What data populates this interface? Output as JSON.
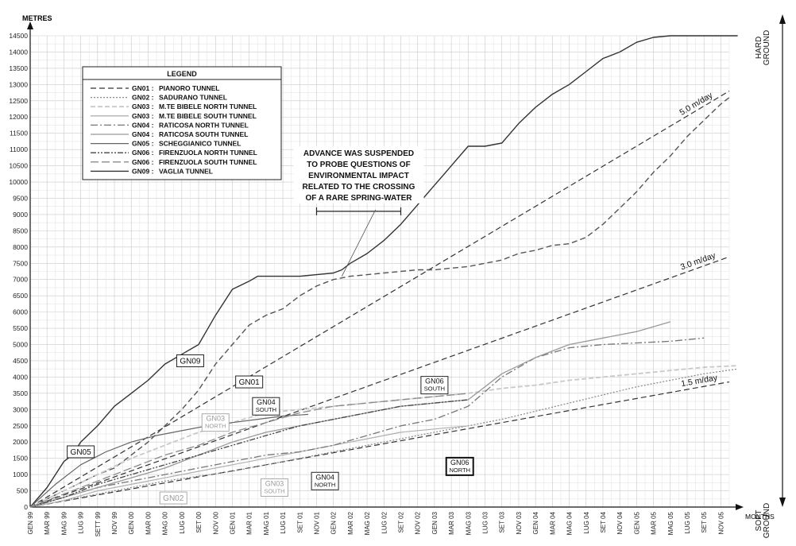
{
  "chart_data": {
    "type": "line",
    "ylabel": "METRES",
    "xlabel": "MONTHS",
    "ylim": [
      0,
      14500
    ],
    "ytick_step": 500,
    "grid": true,
    "x_categories": [
      "GEN 99",
      "MAR 99",
      "MAG 99",
      "LUG 99",
      "SETT 99",
      "NOV 99",
      "GEN 00",
      "MAR 00",
      "MAG 00",
      "LUG 00",
      "SET 00",
      "NOV 00",
      "GEN 01",
      "MAR 01",
      "MAG 01",
      "LUG 01",
      "SET 01",
      "NOV 01",
      "GEN 02",
      "MAR 02",
      "MAG 02",
      "LUG 02",
      "SET 02",
      "NOV 02",
      "GEN 03",
      "MAR 03",
      "MAG 03",
      "LUG 03",
      "SET 03",
      "NOV 03",
      "GEN 04",
      "MAR 04",
      "MAG 04",
      "LUG 04",
      "SET 04",
      "NOV 04",
      "GEN 05",
      "MAR 05",
      "MAG 05",
      "LUG 05",
      "SET 05",
      "NOV 05"
    ],
    "legend": {
      "title": "LEGEND",
      "placement": "top-left",
      "items": [
        {
          "code": "GN01 :",
          "name": "PIANORO TUNNEL"
        },
        {
          "code": "GN02 :",
          "name": "SADURANO TUNNEL"
        },
        {
          "code": "GN03 :",
          "name": "M.TE BIBELE NORTH TUNNEL"
        },
        {
          "code": "GN03 :",
          "name": "M.TE BIBELE SOUTH TUNNEL"
        },
        {
          "code": "GN04 :",
          "name": "RATICOSA NORTH TUNNEL"
        },
        {
          "code": "GN04 :",
          "name": "RATICOSA SOUTH TUNNEL"
        },
        {
          "code": "GN05 :",
          "name": "SCHEGGIANICO TUNNEL"
        },
        {
          "code": "GN06 :",
          "name": "FIRENZUOLA NORTH TUNNEL"
        },
        {
          "code": "GN06 :",
          "name": "FIRENZUOLA SOUTH TUNNEL"
        },
        {
          "code": "GN09 :",
          "name": "VAGLIA TUNNEL"
        }
      ]
    },
    "series": [
      {
        "name": "GN09 : VAGLIA TUNNEL",
        "color": "#333333",
        "dash": "",
        "width": 1.4,
        "x": [
          0,
          2,
          4,
          5,
          6,
          8,
          10,
          12,
          14,
          16,
          18,
          20,
          22,
          24,
          26,
          27,
          28,
          30,
          32,
          34,
          36,
          37,
          38,
          40,
          42,
          44,
          46,
          48,
          49,
          50,
          52,
          54,
          56,
          58,
          60,
          62,
          64,
          66,
          68,
          70,
          72,
          74,
          76,
          78,
          80,
          82,
          83,
          84
        ],
        "y": [
          0,
          600,
          1400,
          1600,
          2000,
          2500,
          3100,
          3500,
          3900,
          4400,
          4700,
          5000,
          5900,
          6700,
          6950,
          7100,
          7100,
          7100,
          7100,
          7150,
          7200,
          7300,
          7500,
          7800,
          8200,
          8700,
          9300,
          9900,
          10200,
          10500,
          11100,
          11100,
          11200,
          11800,
          12300,
          12700,
          13000,
          13400,
          13800,
          14000,
          14300,
          14450,
          14500,
          14500,
          14500,
          14500,
          14500,
          14500
        ]
      },
      {
        "name": "GN01 : PIANORO TUNNEL",
        "color": "#555555",
        "dash": "7,4",
        "width": 1.4,
        "x": [
          0,
          4,
          8,
          10,
          14,
          16,
          18,
          20,
          22,
          24,
          26,
          28,
          30,
          32,
          34,
          36,
          38,
          40,
          42,
          44,
          46,
          48,
          50,
          52,
          54,
          56,
          58,
          60,
          62,
          64,
          66,
          68,
          70,
          72,
          74,
          76,
          78,
          80,
          82,
          83
        ],
        "y": [
          0,
          500,
          1000,
          1200,
          2000,
          2500,
          3000,
          3600,
          4400,
          5000,
          5600,
          5900,
          6100,
          6500,
          6800,
          7000,
          7100,
          7150,
          7200,
          7250,
          7300,
          7300,
          7350,
          7400,
          7500,
          7600,
          7800,
          7900,
          8050,
          8100,
          8300,
          8700,
          9200,
          9700,
          10300,
          10800,
          11400,
          11900,
          12400,
          12600
        ]
      },
      {
        "name": "GN02 : SADURANO TUNNEL",
        "color": "#888888",
        "dash": "2,2",
        "width": 1.2,
        "x": [
          0,
          4,
          8,
          12,
          16,
          20,
          24,
          28,
          32,
          36,
          40,
          44,
          48,
          52,
          56,
          60,
          64,
          68,
          72,
          76,
          80,
          84
        ],
        "y": [
          0,
          200,
          400,
          600,
          800,
          950,
          1100,
          1300,
          1500,
          1700,
          1900,
          2100,
          2300,
          2500,
          2700,
          2950,
          3200,
          3450,
          3700,
          3900,
          4100,
          4250
        ]
      },
      {
        "name": "GN03 : M.TE BIBELE NORTH TUNNEL",
        "color": "#c8c8c8",
        "dash": "6,3",
        "width": 1.8,
        "x": [
          0,
          4,
          8,
          12,
          16,
          20,
          24,
          28,
          32,
          36,
          40,
          44,
          48,
          52,
          56,
          60,
          64,
          68,
          72,
          76,
          80,
          84
        ],
        "y": [
          0,
          500,
          1000,
          1500,
          1900,
          2300,
          2600,
          2900,
          3000,
          3100,
          3200,
          3300,
          3400,
          3500,
          3650,
          3750,
          3900,
          4000,
          4100,
          4200,
          4300,
          4350
        ]
      },
      {
        "name": "GN03 : M.TE BIBELE SOUTH TUNNEL",
        "color": "#b0b0b0",
        "dash": "",
        "width": 1.2,
        "x": [
          0,
          4,
          8,
          12,
          16,
          20,
          24,
          28,
          32,
          36,
          40,
          44,
          48,
          52
        ],
        "y": [
          0,
          200,
          500,
          700,
          900,
          1100,
          1300,
          1500,
          1700,
          1900,
          2100,
          2300,
          2400,
          2500
        ]
      },
      {
        "name": "GN04 : RATICOSA NORTH TUNNEL",
        "color": "#777777",
        "dash": "9,3,2,3",
        "width": 1.3,
        "x": [
          0,
          4,
          8,
          12,
          16,
          20,
          24,
          28,
          32,
          36,
          40,
          44,
          48,
          52,
          56,
          60,
          64,
          68,
          72,
          76,
          80
        ],
        "y": [
          0,
          300,
          600,
          800,
          1000,
          1200,
          1400,
          1600,
          1700,
          1900,
          2200,
          2500,
          2700,
          3100,
          4000,
          4600,
          4900,
          5000,
          5050,
          5100,
          5200
        ]
      },
      {
        "name": "GN04 : RATICOSA SOUTH TUNNEL",
        "color": "#999999",
        "dash": "",
        "width": 1.3,
        "x": [
          0,
          4,
          8,
          12,
          16,
          20,
          24,
          28,
          32,
          36,
          40,
          44,
          48,
          52,
          56,
          60,
          64,
          68,
          72,
          76
        ],
        "y": [
          0,
          300,
          600,
          900,
          1200,
          1600,
          2000,
          2300,
          2500,
          2700,
          2900,
          3100,
          3200,
          3300,
          4100,
          4600,
          5000,
          5200,
          5400,
          5700
        ]
      },
      {
        "name": "GN05 : SCHEGGIANICO TUNNEL",
        "color": "#666666",
        "dash": "",
        "width": 1.2,
        "x": [
          0,
          3,
          6,
          9,
          12,
          15,
          18,
          21,
          24,
          27,
          30,
          33
        ],
        "y": [
          0,
          700,
          1300,
          1700,
          2000,
          2200,
          2350,
          2500,
          2600,
          2700,
          2800,
          2850
        ]
      },
      {
        "name": "GN06 : FIRENZUOLA NORTH TUNNEL",
        "color": "#444444",
        "dash": "7,2,2,2,2,2",
        "width": 1.3,
        "x": [
          0,
          4,
          8,
          12,
          16,
          20,
          24,
          28,
          32,
          36,
          40,
          44,
          48,
          52
        ],
        "y": [
          0,
          300,
          700,
          1000,
          1300,
          1600,
          1900,
          2200,
          2500,
          2700,
          2900,
          3100,
          3200,
          3300
        ]
      },
      {
        "name": "GN06 : FIRENZUOLA SOUTH TUNNEL",
        "color": "#8a8a8a",
        "dash": "10,4",
        "width": 1.3,
        "x": [
          0,
          4,
          8,
          12,
          16,
          20,
          24,
          28,
          32,
          36,
          40,
          44,
          48,
          52
        ],
        "y": [
          0,
          400,
          800,
          1200,
          1600,
          1900,
          2300,
          2600,
          2900,
          3100,
          3200,
          3300,
          3400,
          3500
        ]
      }
    ],
    "rate_lines": [
      {
        "label": "5.0 m/day",
        "y_end": 12800
      },
      {
        "label": "3.0 m/day",
        "y_end": 7700
      },
      {
        "label": "1.5 m/day",
        "y_end": 3850
      }
    ],
    "annotations": {
      "suspension": [
        "ADVANCE WAS SUSPENDED",
        "TO PROBE QUESTIONS OF",
        "ENVIRONMENTAL IMPACT",
        "RELATED TO THE CROSSING",
        "OF A RARE SPRING-WATER"
      ],
      "suspension_x_range": [
        34,
        44
      ],
      "suspension_y": 9100,
      "tags": [
        {
          "lines": [
            "GN09"
          ],
          "style": "box-dark",
          "x": 19,
          "y": 4500
        },
        {
          "lines": [
            "GN01"
          ],
          "style": "box-dark",
          "x": 26,
          "y": 3850
        },
        {
          "lines": [
            "GN04",
            "SOUTH"
          ],
          "style": "box-dark",
          "x": 28,
          "y": 3100
        },
        {
          "lines": [
            "GN03",
            "NORTH"
          ],
          "style": "box-light",
          "x": 22,
          "y": 2600
        },
        {
          "lines": [
            "GN05"
          ],
          "style": "box-dark",
          "x": 6,
          "y": 1700
        },
        {
          "lines": [
            "GN02"
          ],
          "style": "box-light",
          "x": 17,
          "y": 280
        },
        {
          "lines": [
            "GN03",
            "SOUTH"
          ],
          "style": "box-light",
          "x": 29,
          "y": 600
        },
        {
          "lines": [
            "GN04",
            "NORTH"
          ],
          "style": "box-dark",
          "x": 35,
          "y": 800
        },
        {
          "lines": [
            "GN06",
            "SOUTH"
          ],
          "style": "box-dark",
          "x": 48,
          "y": 3750
        },
        {
          "lines": [
            "GN06",
            "NORTH"
          ],
          "style": "box-inverse",
          "x": 51,
          "y": 1250
        }
      ]
    },
    "right_axis": {
      "top": "HARD GROUND",
      "bottom": "SOFT GROUND"
    }
  }
}
